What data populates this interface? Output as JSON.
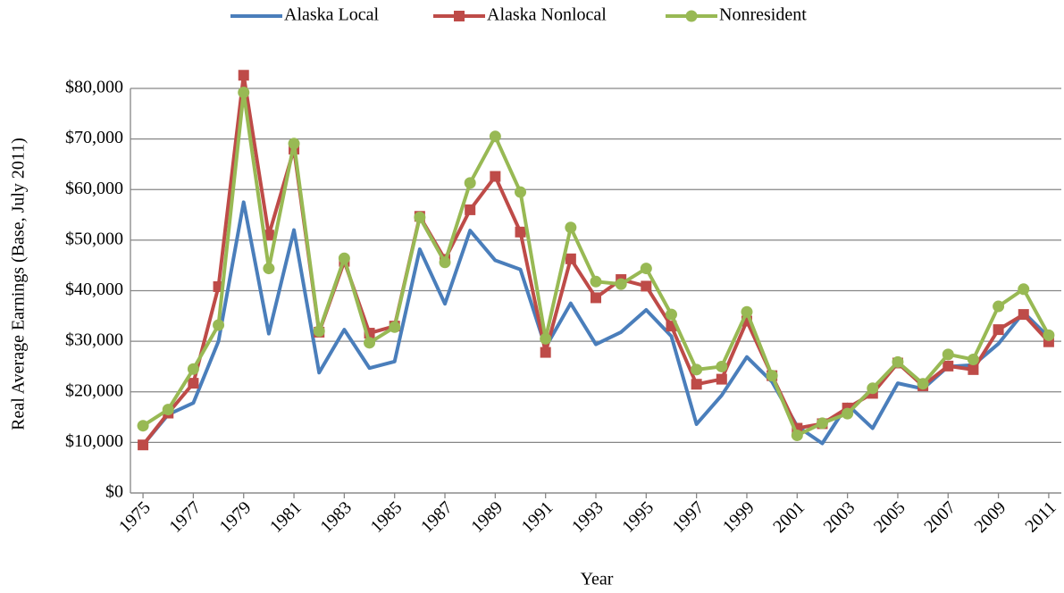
{
  "chart_data": {
    "type": "line",
    "y_label": "Real Average Earnings (Base, July 2011)",
    "x_label": "Year",
    "x": [
      1975,
      1976,
      1977,
      1978,
      1979,
      1980,
      1981,
      1982,
      1983,
      1984,
      1985,
      1986,
      1987,
      1988,
      1989,
      1990,
      1991,
      1992,
      1993,
      1994,
      1995,
      1996,
      1997,
      1998,
      1999,
      2000,
      2001,
      2002,
      2003,
      2004,
      2005,
      2006,
      2007,
      2008,
      2009,
      2010,
      2011
    ],
    "series": [
      {
        "name": "Alaska Local",
        "color": "#4a7ebb",
        "marker": "none",
        "values": [
          9500,
          15500,
          17800,
          30000,
          57500,
          31500,
          52000,
          23800,
          32300,
          24700,
          26000,
          48200,
          37400,
          51900,
          46000,
          44200,
          28800,
          37500,
          29400,
          31800,
          36200,
          31000,
          13600,
          19300,
          26900,
          22000,
          13200,
          9800,
          17500,
          12800,
          21700,
          20600,
          25000,
          25300,
          29500,
          35700,
          30800
        ]
      },
      {
        "name": "Alaska Nonlocal",
        "color": "#be4b48",
        "marker": "square",
        "values": [
          9500,
          15800,
          21700,
          40800,
          82600,
          51000,
          68000,
          31800,
          45800,
          31600,
          33000,
          54700,
          46200,
          56000,
          62600,
          51600,
          27800,
          46300,
          38600,
          42200,
          40900,
          33000,
          21500,
          22500,
          34000,
          23200,
          12800,
          13700,
          16800,
          19700,
          25700,
          21200,
          25100,
          24400,
          32300,
          35300,
          29900
        ]
      },
      {
        "name": "Nonresident",
        "color": "#98b954",
        "marker": "circle",
        "values": [
          13300,
          16500,
          24500,
          33200,
          79200,
          44400,
          69100,
          32000,
          46400,
          29700,
          32800,
          54500,
          45600,
          61300,
          70500,
          59500,
          30500,
          52500,
          41800,
          41300,
          44400,
          35300,
          24400,
          25000,
          35800,
          23200,
          11400,
          13800,
          15700,
          20700,
          25900,
          21600,
          27400,
          26400,
          36900,
          40300,
          31200
        ]
      }
    ],
    "xlim": [
      1974.5,
      2011.5
    ],
    "xticks": [
      1975,
      1977,
      1979,
      1981,
      1983,
      1985,
      1987,
      1989,
      1991,
      1993,
      1995,
      1997,
      1999,
      2001,
      2003,
      2005,
      2007,
      2009,
      2011
    ],
    "ylim": [
      0,
      80000
    ],
    "yticks": [
      {
        "value": 0,
        "label": "$0"
      },
      {
        "value": 10000,
        "label": "$10,000"
      },
      {
        "value": 20000,
        "label": "$20,000"
      },
      {
        "value": 30000,
        "label": "$30,000"
      },
      {
        "value": 40000,
        "label": "$40,000"
      },
      {
        "value": 50000,
        "label": "$50,000"
      },
      {
        "value": 60000,
        "label": "$60,000"
      },
      {
        "value": 70000,
        "label": "$70,000"
      },
      {
        "value": 80000,
        "label": "$80,000"
      }
    ],
    "grid": true,
    "legend": "top"
  }
}
